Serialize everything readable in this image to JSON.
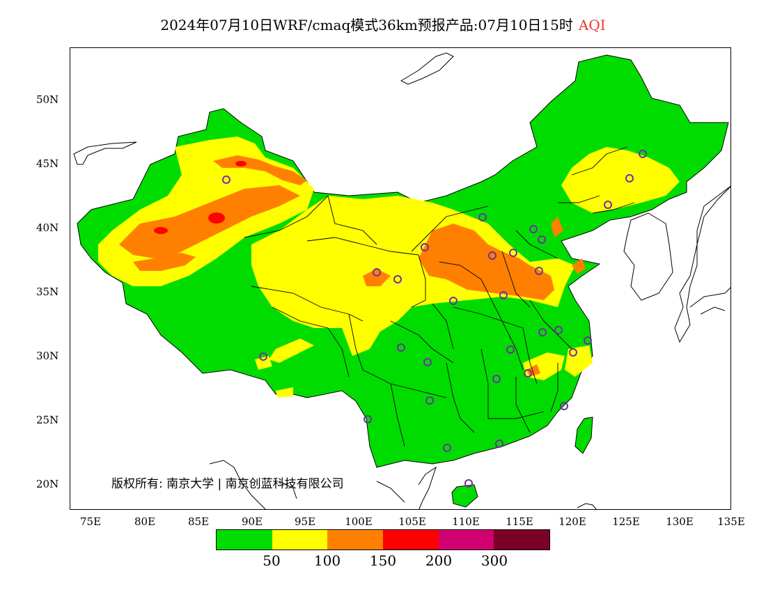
{
  "header": {
    "title": "2024年07月10日WRF/cmaq模式36km预报产品:07月10日15时",
    "variable": "AQI"
  },
  "axes": {
    "lat_labels": [
      "50N",
      "45N",
      "40N",
      "35N",
      "30N",
      "25N",
      "20N"
    ],
    "lon_labels": [
      "75E",
      "80E",
      "85E",
      "90E",
      "95E",
      "100E",
      "105E",
      "110E",
      "115E",
      "120E",
      "125E",
      "130E",
      "135E"
    ]
  },
  "legend": {
    "colors": [
      "#00dc00",
      "#ffff00",
      "#ff8000",
      "#ff0000",
      "#d00070",
      "#7a0028"
    ],
    "labels": [
      "50",
      "100",
      "150",
      "200",
      "300"
    ]
  },
  "copyright": "版权所有: 南京大学 | 南京创蓝科技有限公司",
  "colors": {
    "aqi_good": "#00dc00",
    "aqi_moderate": "#ffff00",
    "aqi_unhealthy_sensitive": "#ff8000",
    "aqi_unhealthy": "#ff0000",
    "station_marker": "#7030a0"
  }
}
